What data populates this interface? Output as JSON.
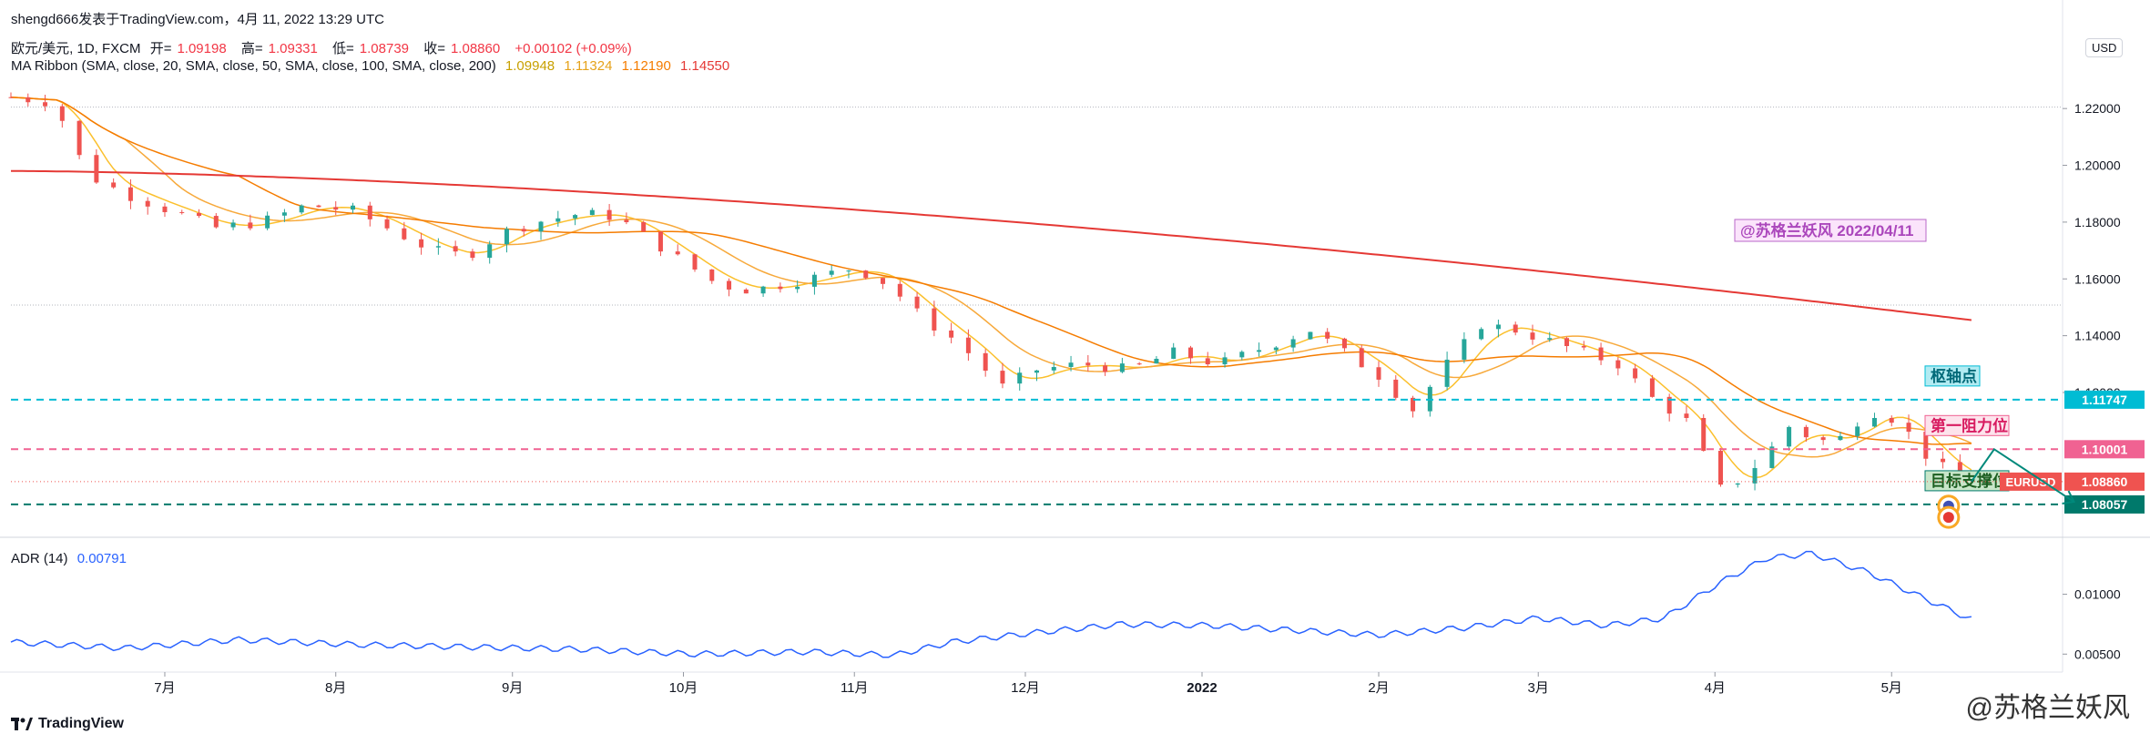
{
  "header": {
    "publisher": "shengd666发表于TradingView.com，4月 11, 2022 13:29 UTC",
    "symbol": "欧元/美元, 1D, FXCM",
    "open_label": "开=",
    "open": "1.09198",
    "high_label": "高=",
    "high": "1.09331",
    "low_label": "低=",
    "low": "1.08739",
    "close_label": "收=",
    "close": "1.08860",
    "change": "+0.00102 (+0.09%)",
    "ribbon_label": "MA Ribbon (SMA, close, 20, SMA, close, 50, SMA, close, 100, SMA, close, 200)",
    "ribbon_values": [
      "1.09948",
      "1.11324",
      "1.12190",
      "1.14550"
    ],
    "currency": "USD"
  },
  "indicator": {
    "label": "ADR (14)",
    "value": "0.00791"
  },
  "footer": {
    "brand": "TradingView",
    "watermark": "@苏格兰妖风"
  },
  "colors": {
    "up": "#26a69a",
    "down": "#ef5350",
    "ma20": "#fbc02d",
    "ma50": "#f7a93b",
    "ma100": "#f57c00",
    "ma200": "#e53935",
    "adr": "#2962ff",
    "pivot": "#00bcd4",
    "resistance": "#f06292",
    "support": "#00796b"
  },
  "chart_data": {
    "type": "candlestick",
    "price_axis": {
      "ticks": [
        1.22,
        1.2,
        1.18,
        1.16,
        1.14,
        1.12
      ],
      "tick_labels": [
        "1.22000",
        "1.20000",
        "1.18000",
        "1.16000",
        "1.14000",
        "1.12000"
      ]
    },
    "time_axis": {
      "labels": [
        "7月",
        "8月",
        "9月",
        "10月",
        "11月",
        "12月",
        "2022",
        "2月",
        "3月",
        "4月",
        "5月"
      ]
    },
    "levels": [
      {
        "name": "枢轴点",
        "value": 1.11747,
        "label": "1.11747"
      },
      {
        "name": "第一阻力位",
        "value": 1.10001,
        "label": "1.10001"
      },
      {
        "name": "目标支撑位",
        "value": 1.08057,
        "label": "1.08057"
      }
    ],
    "last_price": {
      "symbol": "EURUSD",
      "value": 1.0886,
      "label": "1.08860"
    },
    "annotation": "@苏格兰妖风 2022/04/11",
    "series_trend": [
      [
        0,
        1.224
      ],
      [
        8,
        1.222
      ],
      [
        10,
        1.21
      ],
      [
        14,
        1.196
      ],
      [
        20,
        1.19
      ],
      [
        28,
        1.184
      ],
      [
        36,
        1.178
      ],
      [
        44,
        1.18
      ],
      [
        52,
        1.186
      ],
      [
        60,
        1.184
      ],
      [
        68,
        1.176
      ],
      [
        74,
        1.17
      ],
      [
        80,
        1.168
      ],
      [
        86,
        1.176
      ],
      [
        92,
        1.18
      ],
      [
        100,
        1.183
      ],
      [
        106,
        1.182
      ],
      [
        112,
        1.174
      ],
      [
        118,
        1.166
      ],
      [
        124,
        1.158
      ],
      [
        130,
        1.156
      ],
      [
        140,
        1.16
      ],
      [
        148,
        1.164
      ],
      [
        154,
        1.158
      ],
      [
        160,
        1.146
      ],
      [
        166,
        1.138
      ],
      [
        170,
        1.13
      ],
      [
        174,
        1.122
      ],
      [
        180,
        1.128
      ],
      [
        188,
        1.13
      ],
      [
        196,
        1.128
      ],
      [
        204,
        1.134
      ],
      [
        212,
        1.13
      ],
      [
        220,
        1.136
      ],
      [
        228,
        1.142
      ],
      [
        234,
        1.134
      ],
      [
        240,
        1.126
      ],
      [
        246,
        1.114
      ],
      [
        252,
        1.13
      ],
      [
        258,
        1.144
      ],
      [
        264,
        1.142
      ],
      [
        270,
        1.138
      ],
      [
        276,
        1.134
      ],
      [
        282,
        1.13
      ],
      [
        288,
        1.118
      ],
      [
        294,
        1.11
      ],
      [
        300,
        1.086
      ],
      [
        304,
        1.09
      ],
      [
        308,
        1.098
      ],
      [
        312,
        1.108
      ],
      [
        316,
        1.104
      ],
      [
        320,
        1.102
      ],
      [
        324,
        1.11
      ],
      [
        328,
        1.114
      ],
      [
        332,
        1.108
      ],
      [
        336,
        1.098
      ],
      [
        340,
        1.092
      ],
      [
        344,
        1.0886
      ]
    ],
    "ma": [
      {
        "period": 20,
        "value": 1.09948
      },
      {
        "period": 50,
        "value": 1.11324
      },
      {
        "period": 100,
        "value": 1.1219
      },
      {
        "period": 200,
        "value": 1.1455
      }
    ],
    "adr": {
      "ticks": [
        0.01,
        0.005
      ],
      "tick_labels": [
        "0.01000",
        "0.00500"
      ],
      "trend": [
        [
          0,
          0.006
        ],
        [
          20,
          0.0055
        ],
        [
          40,
          0.0062
        ],
        [
          60,
          0.0058
        ],
        [
          80,
          0.0056
        ],
        [
          100,
          0.0054
        ],
        [
          120,
          0.005
        ],
        [
          140,
          0.0052
        ],
        [
          155,
          0.0049
        ],
        [
          165,
          0.006
        ],
        [
          180,
          0.0068
        ],
        [
          195,
          0.0075
        ],
        [
          210,
          0.0074
        ],
        [
          225,
          0.007
        ],
        [
          240,
          0.0066
        ],
        [
          255,
          0.0072
        ],
        [
          268,
          0.008
        ],
        [
          280,
          0.0074
        ],
        [
          290,
          0.008
        ],
        [
          300,
          0.011
        ],
        [
          308,
          0.013
        ],
        [
          316,
          0.0134
        ],
        [
          326,
          0.0118
        ],
        [
          336,
          0.0096
        ],
        [
          344,
          0.0079
        ]
      ]
    }
  }
}
